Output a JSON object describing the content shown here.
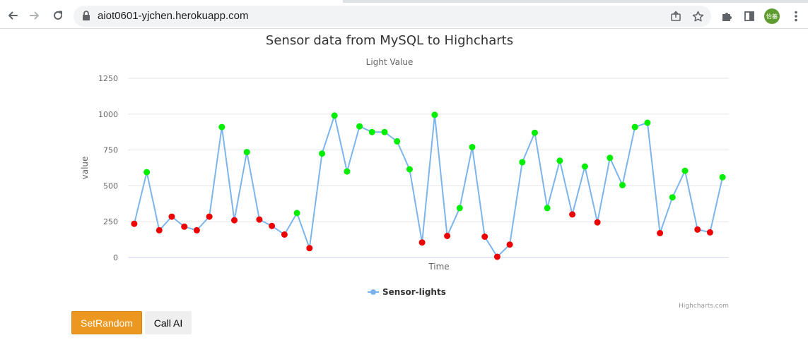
{
  "browser": {
    "url": "aiot0601-yjchen.herokuapp.com",
    "profile_initials": "怡蓁"
  },
  "page": {
    "buttons": {
      "set_random": "SetRandom",
      "call_ai": "Call AI"
    },
    "credit": "Highcharts.com"
  },
  "chart_data": {
    "type": "line",
    "title": "Sensor data from MySQL to Highcharts",
    "subtitle": "Light Value",
    "xlabel": "Time",
    "ylabel": "value",
    "ylim": [
      0,
      1250
    ],
    "yticks": [
      0,
      250,
      500,
      750,
      1000,
      1250
    ],
    "grid": true,
    "legend_placement": "bottom-center",
    "series": [
      {
        "name": "Sensor-lights",
        "line_color": "#7cb5ec",
        "values": [
          235,
          595,
          190,
          285,
          215,
          190,
          285,
          910,
          260,
          735,
          265,
          220,
          160,
          310,
          65,
          725,
          990,
          600,
          915,
          875,
          875,
          810,
          615,
          105,
          995,
          150,
          345,
          770,
          145,
          5,
          90,
          665,
          870,
          345,
          675,
          300,
          635,
          245,
          695,
          505,
          910,
          940,
          170,
          420,
          605,
          195,
          175,
          560
        ]
      }
    ],
    "point_colors": {
      "high": "#00ee00",
      "low": "#ee0000"
    }
  }
}
